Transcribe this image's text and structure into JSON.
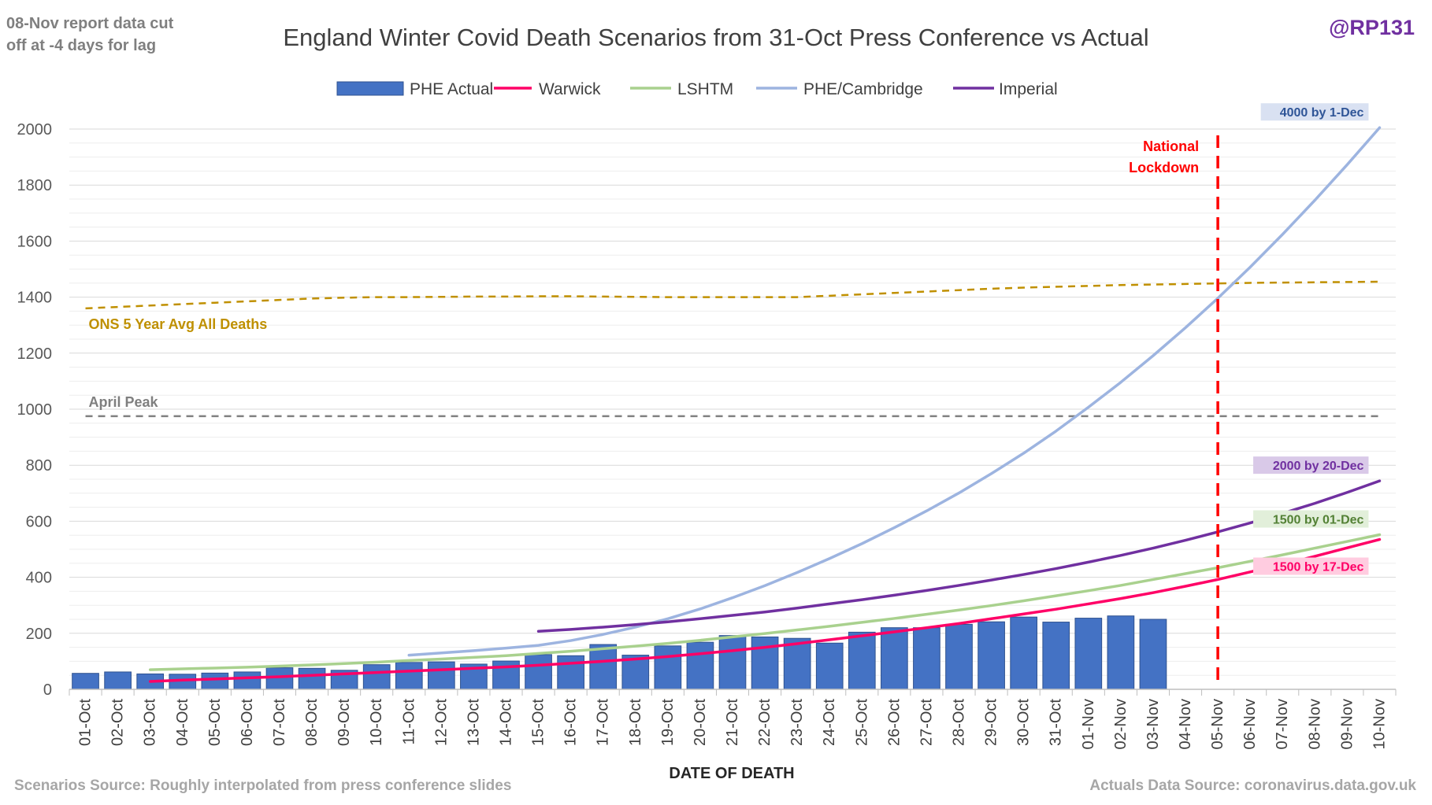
{
  "chart_data": {
    "type": "bar",
    "title": "England Winter Covid Death Scenarios from 31-Oct Press Conference vs Actual",
    "top_left_note": [
      "08-Nov report data cut",
      "off at -4 days for lag"
    ],
    "handle": "@RP131",
    "xlabel": "DATE OF DEATH",
    "ylabel": "",
    "ylim": [
      0,
      2000
    ],
    "yticks": [
      0,
      200,
      400,
      600,
      800,
      1000,
      1200,
      1400,
      1600,
      1800,
      2000
    ],
    "grid": true,
    "legend_position": "top",
    "categories": [
      "01-Oct",
      "02-Oct",
      "03-Oct",
      "04-Oct",
      "05-Oct",
      "06-Oct",
      "07-Oct",
      "08-Oct",
      "09-Oct",
      "10-Oct",
      "11-Oct",
      "12-Oct",
      "13-Oct",
      "14-Oct",
      "15-Oct",
      "16-Oct",
      "17-Oct",
      "18-Oct",
      "19-Oct",
      "20-Oct",
      "21-Oct",
      "22-Oct",
      "23-Oct",
      "24-Oct",
      "25-Oct",
      "26-Oct",
      "27-Oct",
      "28-Oct",
      "29-Oct",
      "30-Oct",
      "31-Oct",
      "01-Nov",
      "02-Nov",
      "03-Nov",
      "04-Nov",
      "05-Nov",
      "06-Nov",
      "07-Nov",
      "08-Nov",
      "09-Nov",
      "10-Nov"
    ],
    "bars": {
      "name": "PHE Actual",
      "color": "#4472C4",
      "edge": "#2F528F",
      "values": [
        57,
        62,
        55,
        54,
        58,
        62,
        77,
        75,
        68,
        88,
        96,
        98,
        90,
        101,
        124,
        120,
        160,
        122,
        155,
        168,
        192,
        187,
        182,
        165,
        204,
        220,
        220,
        232,
        241,
        258,
        240,
        254,
        262,
        250,
        null,
        null,
        null,
        null,
        null,
        null,
        null
      ]
    },
    "series": [
      {
        "name": "Warwick",
        "color": "#FF0066",
        "values": [
          null,
          null,
          28,
          33,
          37,
          41,
          45,
          50,
          55,
          60,
          65,
          70,
          75,
          80,
          86,
          93,
          100,
          108,
          117,
          127,
          138,
          150,
          163,
          177,
          191,
          205,
          220,
          235,
          252,
          269,
          286,
          305,
          324,
          345,
          368,
          392,
          419,
          446,
          475,
          505,
          535
        ],
        "endlabel": "1500 by 17-Dec",
        "endlabel_bg": "#FFCCE0",
        "endlabel_color": "#FF0066"
      },
      {
        "name": "LSHTM",
        "color": "#A9D18E",
        "values": [
          null,
          null,
          70,
          73,
          76,
          79,
          83,
          87,
          92,
          97,
          103,
          108,
          114,
          120,
          128,
          136,
          145,
          154,
          164,
          175,
          187,
          199,
          212,
          225,
          239,
          253,
          268,
          283,
          299,
          316,
          334,
          352,
          371,
          392,
          413,
          434,
          457,
          480,
          504,
          528,
          552
        ],
        "endlabel": "1500 by 01-Dec",
        "endlabel_bg": "#E2EFDA",
        "endlabel_color": "#538135"
      },
      {
        "name": "PHE/Cambridge",
        "color": "#9DB4E0",
        "values": [
          null,
          null,
          null,
          null,
          null,
          null,
          null,
          null,
          null,
          null,
          122,
          130,
          138,
          147,
          157,
          174,
          196,
          222,
          252,
          287,
          327,
          370,
          417,
          467,
          520,
          577,
          637,
          701,
          770,
          843,
          922,
          1007,
          1096,
          1191,
          1291,
          1396,
          1507,
          1624,
          1746,
          1873,
          2005
        ],
        "endlabel": "4000 by 1-Dec",
        "endlabel_bg": "#D9E1F2",
        "endlabel_color": "#2F5597"
      },
      {
        "name": "Imperial",
        "color": "#7030A0",
        "values": [
          null,
          null,
          null,
          null,
          null,
          null,
          null,
          null,
          null,
          null,
          null,
          null,
          null,
          null,
          207,
          214,
          222,
          231,
          241,
          252,
          264,
          276,
          290,
          305,
          320,
          336,
          353,
          371,
          390,
          410,
          431,
          454,
          478,
          504,
          532,
          562,
          594,
          628,
          664,
          703,
          744
        ],
        "endlabel": "2000 by 20-Dec",
        "endlabel_bg": "#D9C9E8",
        "endlabel_color": "#7030A0"
      }
    ],
    "reference_lines": [
      {
        "name": "ONS 5 Year Avg All Deaths",
        "label": "ONS 5 Year Avg All Deaths",
        "color": "#C09000",
        "values": [
          1360,
          1365,
          1370,
          1375,
          1380,
          1385,
          1390,
          1395,
          1398,
          1400,
          1400,
          1401,
          1402,
          1402,
          1403,
          1403,
          1402,
          1401,
          1400,
          1400,
          1400,
          1400,
          1400,
          1405,
          1410,
          1415,
          1420,
          1425,
          1430,
          1434,
          1437,
          1440,
          1443,
          1445,
          1447,
          1449,
          1451,
          1452,
          1453,
          1454,
          1455
        ]
      },
      {
        "name": "April Peak",
        "label": "April Peak",
        "color": "#808080",
        "value": 975
      }
    ],
    "annotations": [
      {
        "text": [
          "National",
          "Lockdown"
        ],
        "at_category": "05-Nov",
        "color": "#FF0000"
      }
    ],
    "footer_left": "Scenarios Source: Roughly interpolated from press conference slides",
    "footer_right": "Actuals Data Source: coronavirus.data.gov.uk"
  }
}
